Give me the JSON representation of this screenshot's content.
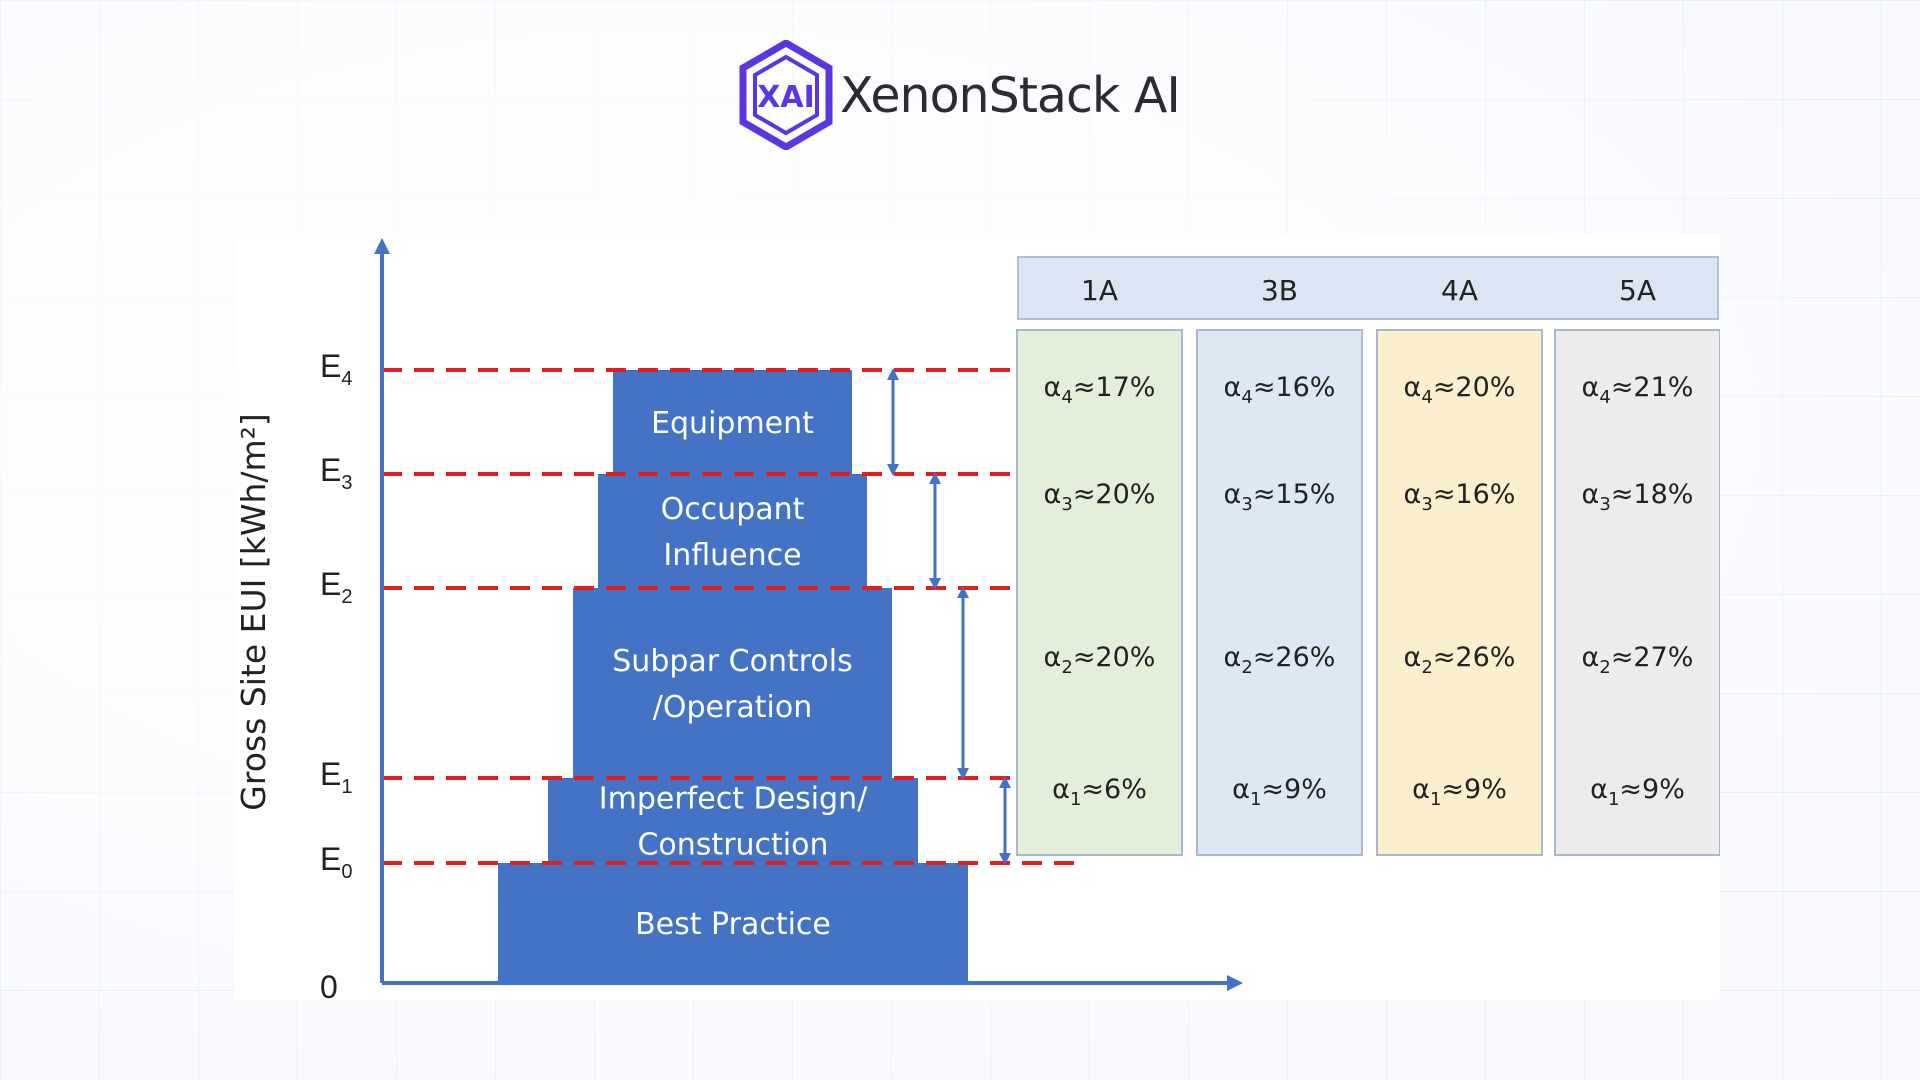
{
  "logo": {
    "mark_text": "XAI",
    "name": "XenonStack AI"
  },
  "diagram": {
    "ylabel": "Gross Site EUI [kWh/m²]",
    "levels": [
      {
        "main": "0",
        "sub": ""
      },
      {
        "main": "E",
        "sub": "0"
      },
      {
        "main": "E",
        "sub": "1"
      },
      {
        "main": "E",
        "sub": "2"
      },
      {
        "main": "E",
        "sub": "3"
      },
      {
        "main": "E",
        "sub": "4"
      }
    ],
    "segments": [
      {
        "lines": [
          "Best Practice"
        ]
      },
      {
        "lines": [
          "Imperfect Design/",
          "Construction"
        ]
      },
      {
        "lines": [
          "Subpar Controls",
          "/Operation"
        ]
      },
      {
        "lines": [
          "Occupant",
          "Influence"
        ]
      },
      {
        "lines": [
          "Equipment"
        ]
      }
    ],
    "zones": [
      {
        "name": "1A",
        "color": "#e3efd9",
        "alphas": [
          "≈6%",
          "≈20%",
          "≈20%",
          "≈17%"
        ]
      },
      {
        "name": "3B",
        "color": "#dde8f5",
        "alphas": [
          "≈9%",
          "≈26%",
          "≈15%",
          "≈16%"
        ]
      },
      {
        "name": "4A",
        "color": "#fcefcf",
        "alphas": [
          "≈9%",
          "≈26%",
          "≈16%",
          "≈20%"
        ]
      },
      {
        "name": "5A",
        "color": "#ececec",
        "alphas": [
          "≈9%",
          "≈27%",
          "≈18%",
          "≈21%"
        ]
      }
    ],
    "alpha_symbol": "α",
    "bar_color": "#4472c4",
    "dash_color": "#e02020"
  }
}
